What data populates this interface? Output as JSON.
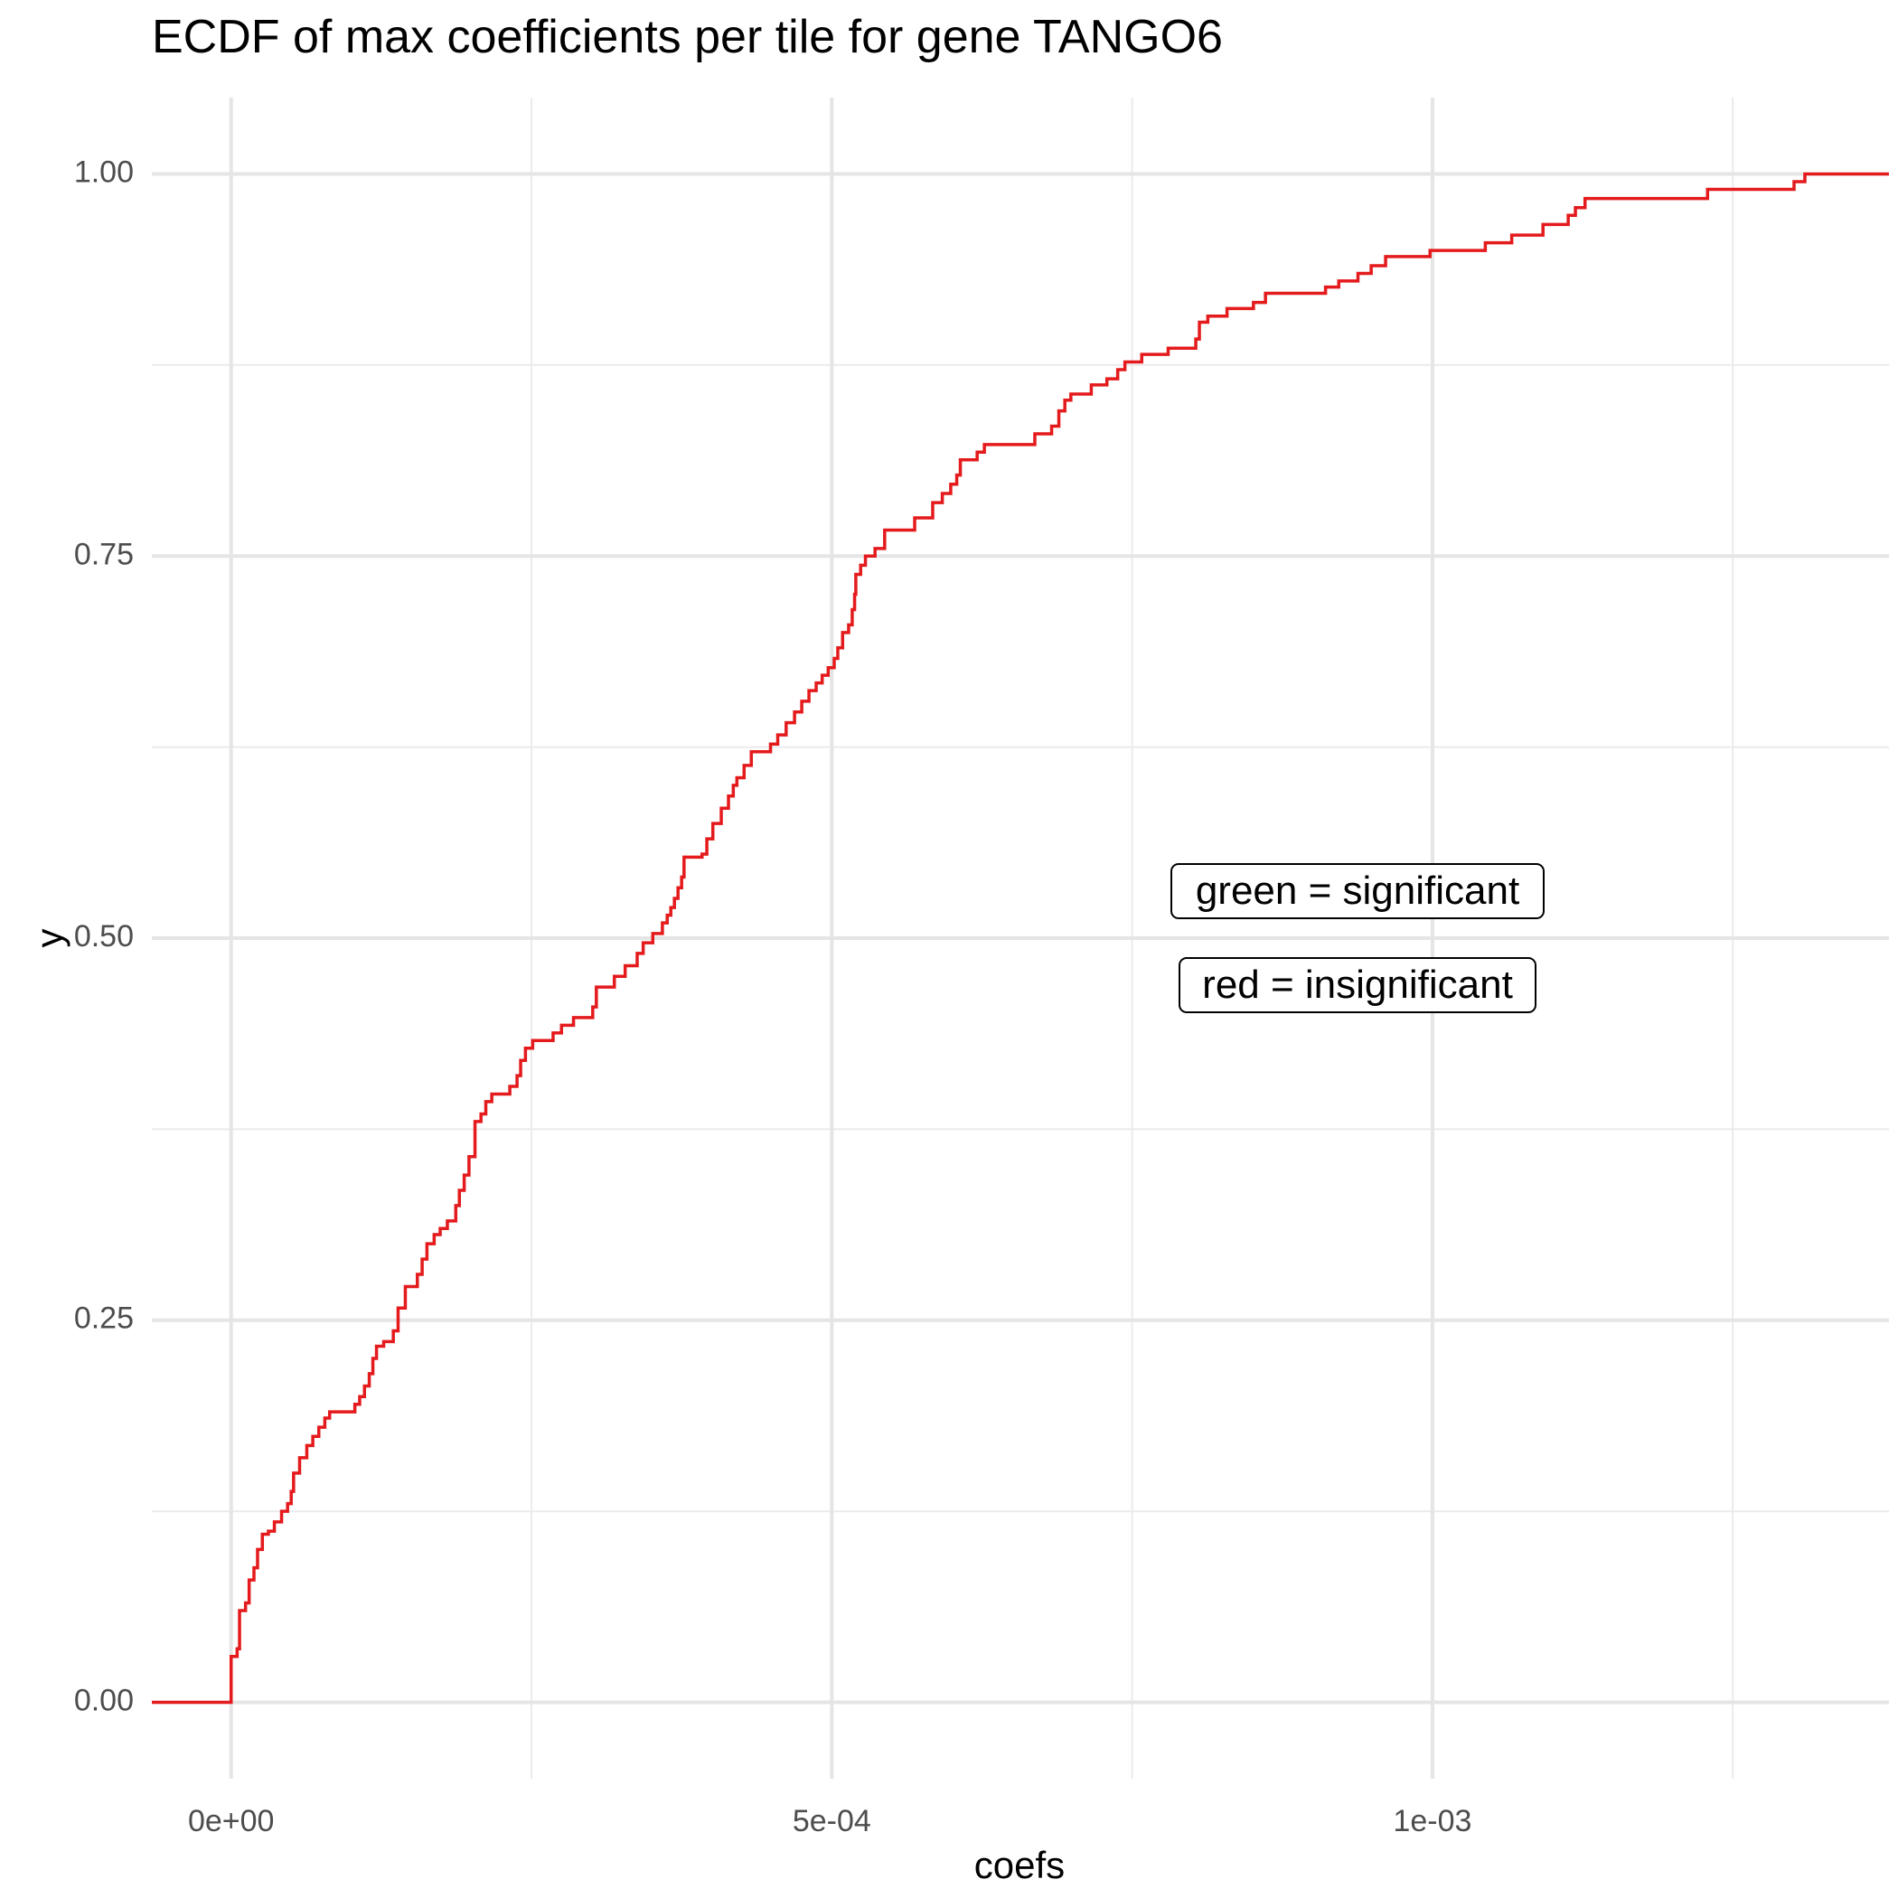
{
  "chart_data": {
    "type": "line",
    "title": "ECDF of max coefficients per tile for gene TANGO6",
    "xlabel": "coefs",
    "ylabel": "y",
    "xlim": [
      -6.6e-05,
      0.00138
    ],
    "ylim": [
      -0.05,
      1.05
    ],
    "x_ticks": [
      0,
      0.0005,
      0.001
    ],
    "x_tick_labels": [
      "0e+00",
      "5e-04",
      "1e-03"
    ],
    "x_minor_ticks": [
      0.00025,
      0.00075,
      0.00125
    ],
    "y_ticks": [
      0,
      0.25,
      0.5,
      0.75,
      1.0
    ],
    "y_tick_labels": [
      "0.00",
      "0.25",
      "0.50",
      "0.75",
      "1.00"
    ],
    "y_minor_ticks": [
      0.125,
      0.375,
      0.625,
      0.875
    ],
    "grid": true,
    "series": [
      {
        "color": "#e41a1c",
        "step": "post",
        "points": [
          [
            -6.6e-05,
            0.0
          ],
          [
            0.0,
            0.0
          ],
          [
            0.0,
            0.03
          ],
          [
            5e-06,
            0.035
          ],
          [
            7e-06,
            0.06
          ],
          [
            1.2e-05,
            0.065
          ],
          [
            1.5e-05,
            0.08
          ],
          [
            1.9e-05,
            0.088
          ],
          [
            2.2e-05,
            0.1
          ],
          [
            2.6e-05,
            0.11
          ],
          [
            3.1e-05,
            0.112
          ],
          [
            3.6e-05,
            0.118
          ],
          [
            4.2e-05,
            0.125
          ],
          [
            4.7e-05,
            0.13
          ],
          [
            5e-05,
            0.138
          ],
          [
            5.2e-05,
            0.15
          ],
          [
            5.7e-05,
            0.16
          ],
          [
            6.3e-05,
            0.168
          ],
          [
            6.8e-05,
            0.174
          ],
          [
            7.3e-05,
            0.18
          ],
          [
            7.8e-05,
            0.186
          ],
          [
            8.2e-05,
            0.19
          ],
          [
            0.000103,
            0.195
          ],
          [
            0.000107,
            0.2
          ],
          [
            0.000111,
            0.207
          ],
          [
            0.000115,
            0.215
          ],
          [
            0.000118,
            0.225
          ],
          [
            0.000121,
            0.233
          ],
          [
            0.000127,
            0.236
          ],
          [
            0.000135,
            0.243
          ],
          [
            0.000139,
            0.258
          ],
          [
            0.000145,
            0.272
          ],
          [
            0.000155,
            0.28
          ],
          [
            0.000159,
            0.29
          ],
          [
            0.000163,
            0.3
          ],
          [
            0.000169,
            0.306
          ],
          [
            0.000174,
            0.31
          ],
          [
            0.00018,
            0.315
          ],
          [
            0.000187,
            0.325
          ],
          [
            0.00019,
            0.335
          ],
          [
            0.000194,
            0.345
          ],
          [
            0.000198,
            0.357
          ],
          [
            0.000203,
            0.38
          ],
          [
            0.000208,
            0.385
          ],
          [
            0.000212,
            0.393
          ],
          [
            0.000217,
            0.398
          ],
          [
            0.000232,
            0.403
          ],
          [
            0.000238,
            0.41
          ],
          [
            0.000241,
            0.42
          ],
          [
            0.000245,
            0.428
          ],
          [
            0.000251,
            0.433
          ],
          [
            0.000268,
            0.438
          ],
          [
            0.000275,
            0.443
          ],
          [
            0.000285,
            0.448
          ],
          [
            0.000301,
            0.455
          ],
          [
            0.000304,
            0.468
          ],
          [
            0.000319,
            0.475
          ],
          [
            0.000328,
            0.482
          ],
          [
            0.000338,
            0.49
          ],
          [
            0.000343,
            0.497
          ],
          [
            0.000351,
            0.503
          ],
          [
            0.000359,
            0.51
          ],
          [
            0.000363,
            0.515
          ],
          [
            0.000366,
            0.52
          ],
          [
            0.000369,
            0.526
          ],
          [
            0.000372,
            0.533
          ],
          [
            0.000375,
            0.54
          ],
          [
            0.000377,
            0.553
          ],
          [
            0.000392,
            0.555
          ],
          [
            0.000396,
            0.565
          ],
          [
            0.000401,
            0.575
          ],
          [
            0.000408,
            0.585
          ],
          [
            0.000414,
            0.593
          ],
          [
            0.000418,
            0.6
          ],
          [
            0.000421,
            0.605
          ],
          [
            0.000427,
            0.613
          ],
          [
            0.000433,
            0.622
          ],
          [
            0.000449,
            0.627
          ],
          [
            0.000455,
            0.633
          ],
          [
            0.000462,
            0.641
          ],
          [
            0.000469,
            0.648
          ],
          [
            0.000475,
            0.655
          ],
          [
            0.000481,
            0.662
          ],
          [
            0.000487,
            0.667
          ],
          [
            0.000492,
            0.672
          ],
          [
            0.000497,
            0.677
          ],
          [
            0.000502,
            0.683
          ],
          [
            0.000505,
            0.69
          ],
          [
            0.000509,
            0.7
          ],
          [
            0.000514,
            0.705
          ],
          [
            0.000517,
            0.715
          ],
          [
            0.000519,
            0.725
          ],
          [
            0.00052,
            0.738
          ],
          [
            0.000524,
            0.744
          ],
          [
            0.000528,
            0.75
          ],
          [
            0.000536,
            0.755
          ],
          [
            0.000544,
            0.767
          ],
          [
            0.000569,
            0.775
          ],
          [
            0.000584,
            0.785
          ],
          [
            0.000592,
            0.791
          ],
          [
            0.000599,
            0.797
          ],
          [
            0.000604,
            0.803
          ],
          [
            0.000607,
            0.813
          ],
          [
            0.000621,
            0.818
          ],
          [
            0.000627,
            0.823
          ],
          [
            0.000669,
            0.83
          ],
          [
            0.000683,
            0.835
          ],
          [
            0.000689,
            0.845
          ],
          [
            0.000694,
            0.852
          ],
          [
            0.000699,
            0.856
          ],
          [
            0.000716,
            0.862
          ],
          [
            0.000729,
            0.866
          ],
          [
            0.000738,
            0.872
          ],
          [
            0.000744,
            0.877
          ],
          [
            0.000758,
            0.882
          ],
          [
            0.00078,
            0.886
          ],
          [
            0.000803,
            0.892
          ],
          [
            0.000806,
            0.903
          ],
          [
            0.000813,
            0.907
          ],
          [
            0.000829,
            0.912
          ],
          [
            0.000851,
            0.916
          ],
          [
            0.000861,
            0.922
          ],
          [
            0.000911,
            0.926
          ],
          [
            0.000922,
            0.93
          ],
          [
            0.000938,
            0.935
          ],
          [
            0.000949,
            0.94
          ],
          [
            0.000961,
            0.946
          ],
          [
            0.000998,
            0.95
          ],
          [
            0.001044,
            0.955
          ],
          [
            0.001066,
            0.96
          ],
          [
            0.001092,
            0.967
          ],
          [
            0.001113,
            0.973
          ],
          [
            0.001119,
            0.978
          ],
          [
            0.001127,
            0.984
          ],
          [
            0.001229,
            0.99
          ],
          [
            0.001301,
            0.995
          ],
          [
            0.00131,
            1.0
          ],
          [
            0.00138,
            1.0
          ]
        ]
      }
    ],
    "annotations": [
      {
        "text": "green = significant",
        "x": 0.00095,
        "y": 0.53
      },
      {
        "text": "red = insignificant",
        "x": 0.00095,
        "y": 0.47
      }
    ]
  }
}
